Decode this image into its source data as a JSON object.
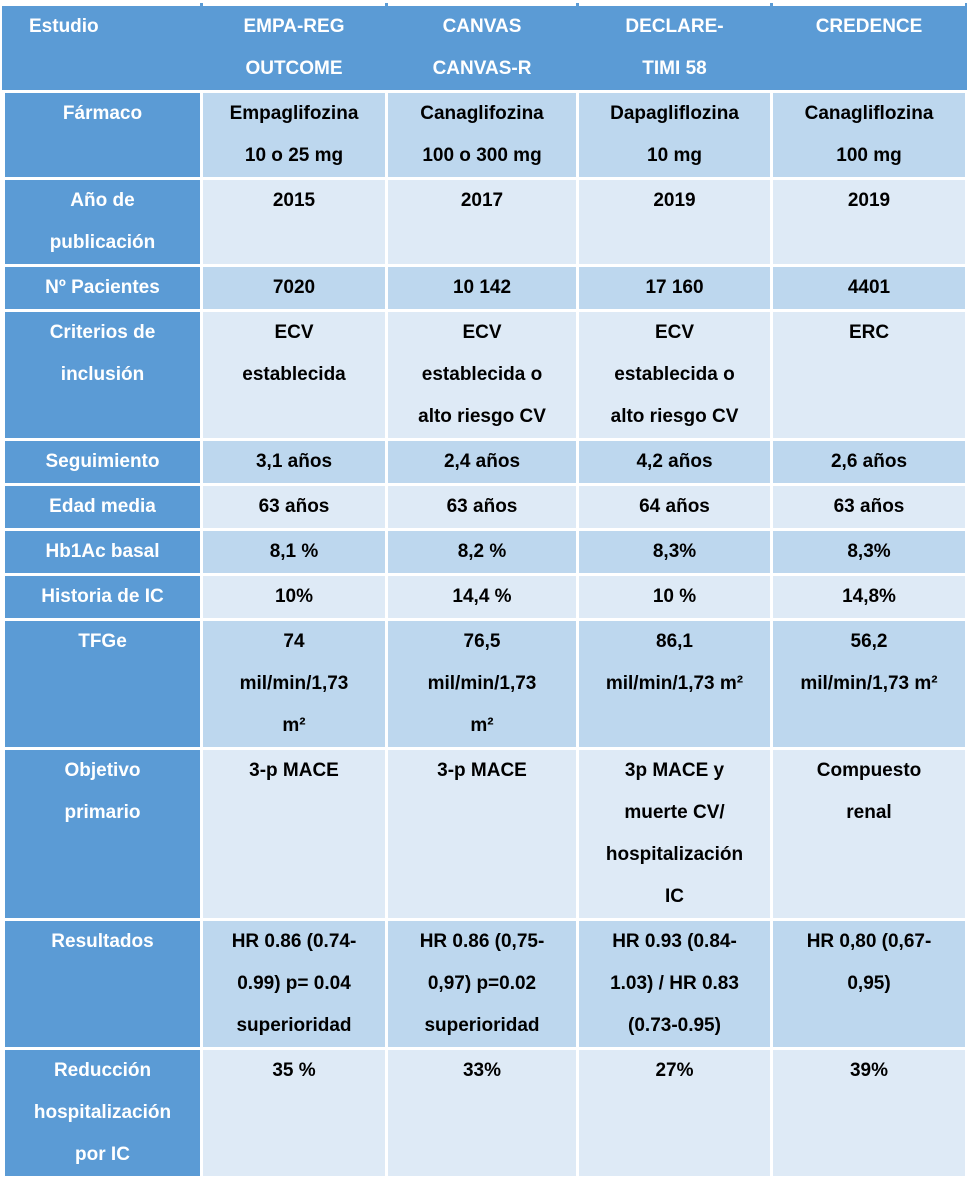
{
  "colors": {
    "header_bg": "#5b9bd5",
    "band_dark": "#bdd7ee",
    "band_light": "#deeaf6",
    "grid": "#ffffff",
    "header_text": "#ffffff",
    "cell_text": "#000000"
  },
  "table": {
    "columns": [
      "Estudio",
      "EMPA-REG\nOUTCOME",
      "CANVAS\nCANVAS-R",
      "DECLARE-\nTIMI 58",
      "CREDENCE"
    ],
    "rows": [
      {
        "label": "Fármaco",
        "cells": [
          "Empaglifozina\n10 o 25 mg",
          "Canaglifozina\n100 o 300 mg",
          "Dapagliflozina\n10 mg",
          "Canagliflozina\n100 mg"
        ]
      },
      {
        "label": "Año de\npublicación",
        "cells": [
          "2015",
          "2017",
          "2019",
          "2019"
        ]
      },
      {
        "label": "Nº Pacientes",
        "cells": [
          "7020",
          "10 142",
          "17 160",
          "4401"
        ]
      },
      {
        "label": "Criterios de\ninclusión",
        "cells": [
          "ECV\nestablecida",
          "ECV\nestablecida o\nalto riesgo CV",
          "ECV\nestablecida o\nalto riesgo CV",
          "ERC"
        ]
      },
      {
        "label": "Seguimiento",
        "cells": [
          "3,1 años",
          "2,4 años",
          "4,2 años",
          "2,6 años"
        ]
      },
      {
        "label": "Edad media",
        "cells": [
          "63 años",
          "63 años",
          "64 años",
          "63 años"
        ]
      },
      {
        "label": "Hb1Ac basal",
        "cells": [
          "8,1 %",
          "8,2 %",
          "8,3%",
          "8,3%"
        ]
      },
      {
        "label": "Historia de IC",
        "cells": [
          "10%",
          "14,4 %",
          "10 %",
          "14,8%"
        ]
      },
      {
        "label": "TFGe",
        "cells": [
          "74\nmil/min/1,73\nm²",
          "76,5\nmil/min/1,73\nm²",
          "86,1\nmil/min/1,73 m²",
          "56,2\nmil/min/1,73 m²"
        ]
      },
      {
        "label": "Objetivo\nprimario",
        "cells": [
          "3-p MACE",
          "3-p MACE",
          "3p MACE y\nmuerte CV/\nhospitalización\nIC",
          "Compuesto\nrenal"
        ]
      },
      {
        "label": "Resultados",
        "cells": [
          "HR 0.86 (0.74-\n0.99) p= 0.04\nsuperioridad",
          "HR 0.86 (0,75-\n0,97) p=0.02\nsuperioridad",
          "HR 0.93 (0.84-\n1.03) / HR 0.83\n(0.73-0.95)",
          "HR 0,80 (0,67-\n0,95)"
        ]
      },
      {
        "label": "Reducción\nhospitalización\npor IC",
        "cells": [
          "35 %",
          "33%",
          "27%",
          "39%"
        ]
      }
    ]
  }
}
